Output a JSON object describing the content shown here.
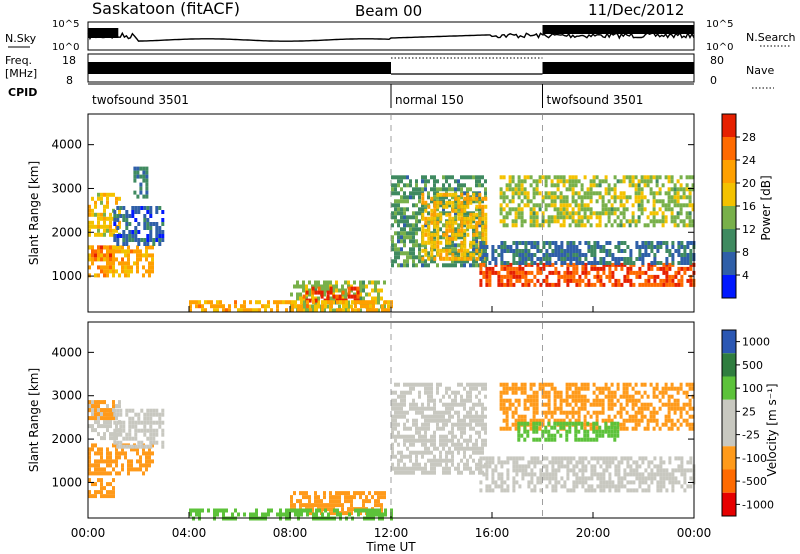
{
  "header": {
    "station": "Saskatoon (fitACF)",
    "beam": "Beam 00",
    "date": "11/Dec/2012"
  },
  "aux_panels": {
    "nsky": {
      "label": "N.Sky",
      "ticks_left": [
        "10^5",
        "10^0"
      ],
      "ticks_right": [
        "10^5",
        "10^0"
      ],
      "right_label": "N.Search"
    },
    "freq": {
      "label_top": "Freq.",
      "label_unit": "[MHz]",
      "ticks_left": [
        "18",
        "8"
      ],
      "ticks_right": [
        "80",
        "0"
      ],
      "right_label": "Nave"
    },
    "cpid": {
      "label": "CPID",
      "segments": [
        {
          "name": "twofsound 3501",
          "start": 0,
          "end": 12
        },
        {
          "name": "normal 150",
          "start": 12,
          "end": 18
        },
        {
          "name": "twofsound 3501",
          "start": 18,
          "end": 24
        }
      ]
    }
  },
  "colors": {
    "power": [
      "#0018ff",
      "#2f5fa8",
      "#3f8a60",
      "#78b04a",
      "#f4c200",
      "#ffa000",
      "#ff6a00",
      "#e62000"
    ],
    "velocity": [
      "#e60000",
      "#ff6a00",
      "#ff9a1a",
      "#c8c8c0",
      "#c8c8c0",
      "#5cc23a",
      "#2f7d3f",
      "#2b57b3"
    ],
    "gray": "#c8c8c0"
  },
  "chart_data": [
    {
      "type": "heatmap",
      "name": "power",
      "xlabel": "Time UT",
      "ylabel": "Slant Range [km]",
      "xlim": [
        0,
        24
      ],
      "ylim": [
        180,
        4700
      ],
      "x_ticks": [
        "00:00",
        "04:00",
        "08:00",
        "12:00",
        "16:00",
        "20:00",
        "00:00"
      ],
      "y_ticks": [
        "1000",
        "2000",
        "3000",
        "4000"
      ],
      "colorbar": {
        "label": "Power [dB]",
        "ticks": [
          "4",
          "8",
          "12",
          "16",
          "20",
          "24",
          "28"
        ],
        "range": [
          0,
          30
        ]
      },
      "regions": [
        {
          "t0": 0.0,
          "t1": 1.0,
          "r0": 1400,
          "r1": 1700,
          "level": 26
        },
        {
          "t0": 0.0,
          "t1": 2.6,
          "r0": 1000,
          "r1": 1700,
          "level": 20
        },
        {
          "t0": 0.0,
          "t1": 1.2,
          "r0": 1900,
          "r1": 2900,
          "level": 17
        },
        {
          "t0": 1.0,
          "t1": 3.0,
          "r0": 1700,
          "r1": 2600,
          "level": 6
        },
        {
          "t0": 1.8,
          "t1": 2.3,
          "r0": 2800,
          "r1": 3500,
          "level": 8
        },
        {
          "t0": 8.0,
          "t1": 11.8,
          "r0": 200,
          "r1": 900,
          "level": 14
        },
        {
          "t0": 8.5,
          "t1": 10.7,
          "r0": 440,
          "r1": 760,
          "level": 28
        },
        {
          "t0": 12.0,
          "t1": 15.8,
          "r0": 1200,
          "r1": 3300,
          "level": 10
        },
        {
          "t0": 13.2,
          "t1": 15.7,
          "r0": 1400,
          "r1": 2900,
          "level": 18
        },
        {
          "t0": 15.5,
          "t1": 24.0,
          "r0": 800,
          "r1": 1300,
          "level": 26
        },
        {
          "t0": 15.5,
          "t1": 24.0,
          "r0": 1300,
          "r1": 1800,
          "level": 7
        },
        {
          "t0": 16.3,
          "t1": 24.0,
          "r0": 2200,
          "r1": 3300,
          "level": 14
        },
        {
          "t0": 4.0,
          "t1": 12.0,
          "r0": 200,
          "r1": 450,
          "level": 20
        }
      ]
    },
    {
      "type": "heatmap",
      "name": "velocity",
      "xlabel": "Time UT",
      "ylabel": "Slant Range [km]",
      "xlim": [
        0,
        24
      ],
      "ylim": [
        180,
        4700
      ],
      "x_ticks": [
        "00:00",
        "04:00",
        "08:00",
        "12:00",
        "16:00",
        "20:00",
        "00:00"
      ],
      "y_ticks": [
        "1000",
        "2000",
        "3000",
        "4000"
      ],
      "colorbar": {
        "label": "Velocity [m s⁻¹]",
        "ticks": [
          "1000",
          "500",
          "100",
          "25",
          "-25",
          "-100",
          "-500",
          "-1000"
        ]
      },
      "regions": [
        {
          "t0": 0.0,
          "t1": 2.6,
          "r0": 1200,
          "r1": 1900,
          "vel": -120
        },
        {
          "t0": 0.0,
          "t1": 1.0,
          "r0": 700,
          "r1": 1100,
          "vel": -110
        },
        {
          "t0": 0.0,
          "t1": 1.2,
          "r0": 2000,
          "r1": 2900,
          "vel": 0
        },
        {
          "t0": 0.0,
          "t1": 1.0,
          "r0": 2500,
          "r1": 2900,
          "vel": -130
        },
        {
          "t0": 1.0,
          "t1": 3.0,
          "r0": 1800,
          "r1": 2700,
          "vel": 0
        },
        {
          "t0": 8.0,
          "t1": 11.8,
          "r0": 300,
          "r1": 800,
          "vel": -90
        },
        {
          "t0": 4.0,
          "t1": 12.0,
          "r0": 180,
          "r1": 400,
          "vel": 120
        },
        {
          "t0": 12.0,
          "t1": 15.8,
          "r0": 1200,
          "r1": 3300,
          "vel": 0
        },
        {
          "t0": 15.5,
          "t1": 24.0,
          "r0": 800,
          "r1": 1600,
          "vel": 0
        },
        {
          "t0": 16.3,
          "t1": 24.0,
          "r0": 2200,
          "r1": 3300,
          "vel": -120
        },
        {
          "t0": 17.0,
          "t1": 21.0,
          "r0": 2000,
          "r1": 2400,
          "vel": 150
        }
      ]
    }
  ]
}
